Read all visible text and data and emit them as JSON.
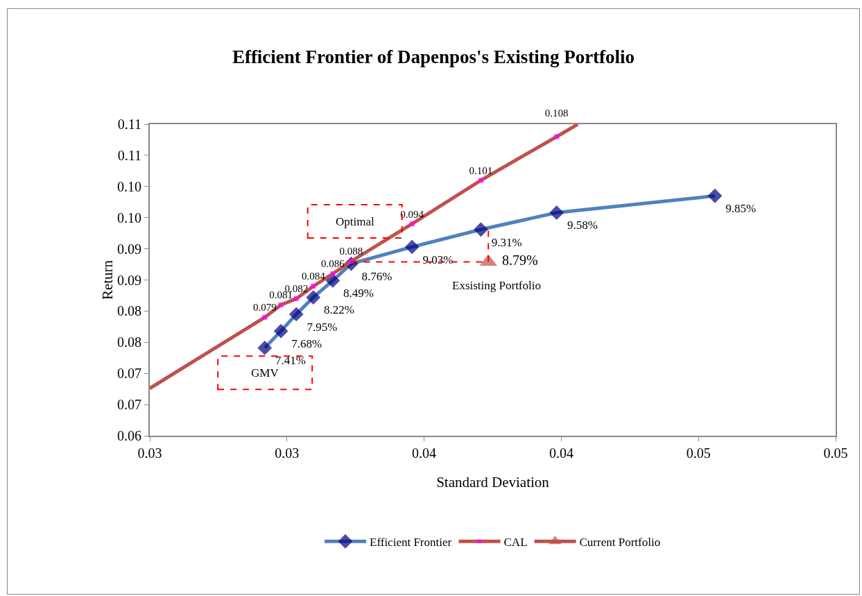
{
  "chart_data": {
    "type": "line",
    "title": "Efficient Frontier of Dapenpos's Existing Portfolio",
    "xlabel": "Standard Deviation",
    "ylabel": "Return",
    "xlim": [
      0.025,
      0.05
    ],
    "xticks": [
      {
        "value": 0.025,
        "label": "0.03"
      },
      0.03,
      {
        "value": 0.035,
        "label": "0.04"
      },
      0.04,
      {
        "value": 0.045,
        "label": "0.05"
      },
      0.05
    ],
    "ylim": [
      0.06,
      0.11
    ],
    "yticks": [
      0.06,
      {
        "value": 0.065,
        "label": "0.07"
      },
      0.07,
      {
        "value": 0.075,
        "label": "0.08"
      },
      0.08,
      {
        "value": 0.085,
        "label": "0.09"
      },
      0.09,
      {
        "value": 0.095,
        "label": "0.10"
      },
      {
        "value": 0.1,
        "label": "0.10"
      },
      {
        "value": 0.105,
        "label": "0.11"
      },
      0.11
    ],
    "grid": false,
    "legend": "bottom",
    "series": [
      {
        "name": "Efficient Frontier",
        "color": "#4f81bd",
        "marker": "diamond",
        "colors": [
          "#000080",
          "#000080",
          "#000080",
          "#000080",
          "#000080",
          "#000080",
          "#000080",
          "#000080",
          "#000080",
          "#000080"
        ],
        "x": [
          0.02919,
          0.02978,
          0.03034,
          0.03096,
          0.03167,
          0.03234,
          0.03456,
          0.03707,
          0.03983,
          0.0456
        ],
        "values": [
          0.0741,
          0.0768,
          0.0795,
          0.0822,
          0.0849,
          0.0876,
          0.0903,
          0.0931,
          0.0958,
          0.0985
        ],
        "value_labels": [
          "7.41%",
          "7.68%",
          "7.95%",
          "8.22%",
          "8.49%",
          "8.76%",
          "9.03%",
          "9.31%",
          "9.58%",
          "9.85%"
        ]
      },
      {
        "name": "CAL",
        "color": "#c0504d",
        "marker": "square",
        "colors": [
          "#ff00ff",
          "#ff00ff",
          "#ff00ff",
          "#ff00ff",
          "#ff00ff",
          "#ff00ff",
          "#ff00ff",
          "#ff00ff",
          "#ff00ff",
          "#ff00ff",
          "#ff00ff"
        ],
        "x": [
          0.025,
          0.02919,
          0.02978,
          0.03034,
          0.03096,
          0.03167,
          0.03234,
          0.03456,
          0.03707,
          0.03983,
          0.0406
        ],
        "values": [
          0.0676,
          0.079,
          0.081,
          0.082,
          0.084,
          0.086,
          0.088,
          0.094,
          0.101,
          0.108,
          0.11
        ],
        "value_labels": [
          null,
          "0.079",
          "0.081",
          "0.082",
          "0.084",
          "0.086",
          "0.088",
          "0.094",
          "0.101",
          "0.108",
          null
        ]
      },
      {
        "name": "Current Portfolio",
        "color": "#c0504d",
        "marker": "triangle",
        "colors": [
          "#c0504d"
        ],
        "x": [
          0.03734
        ],
        "values": [
          0.0879
        ],
        "value_labels": [
          "8.79%"
        ]
      }
    ],
    "annotations": [
      "Optimal",
      "GMV",
      "Exsisting Portfolio"
    ]
  }
}
